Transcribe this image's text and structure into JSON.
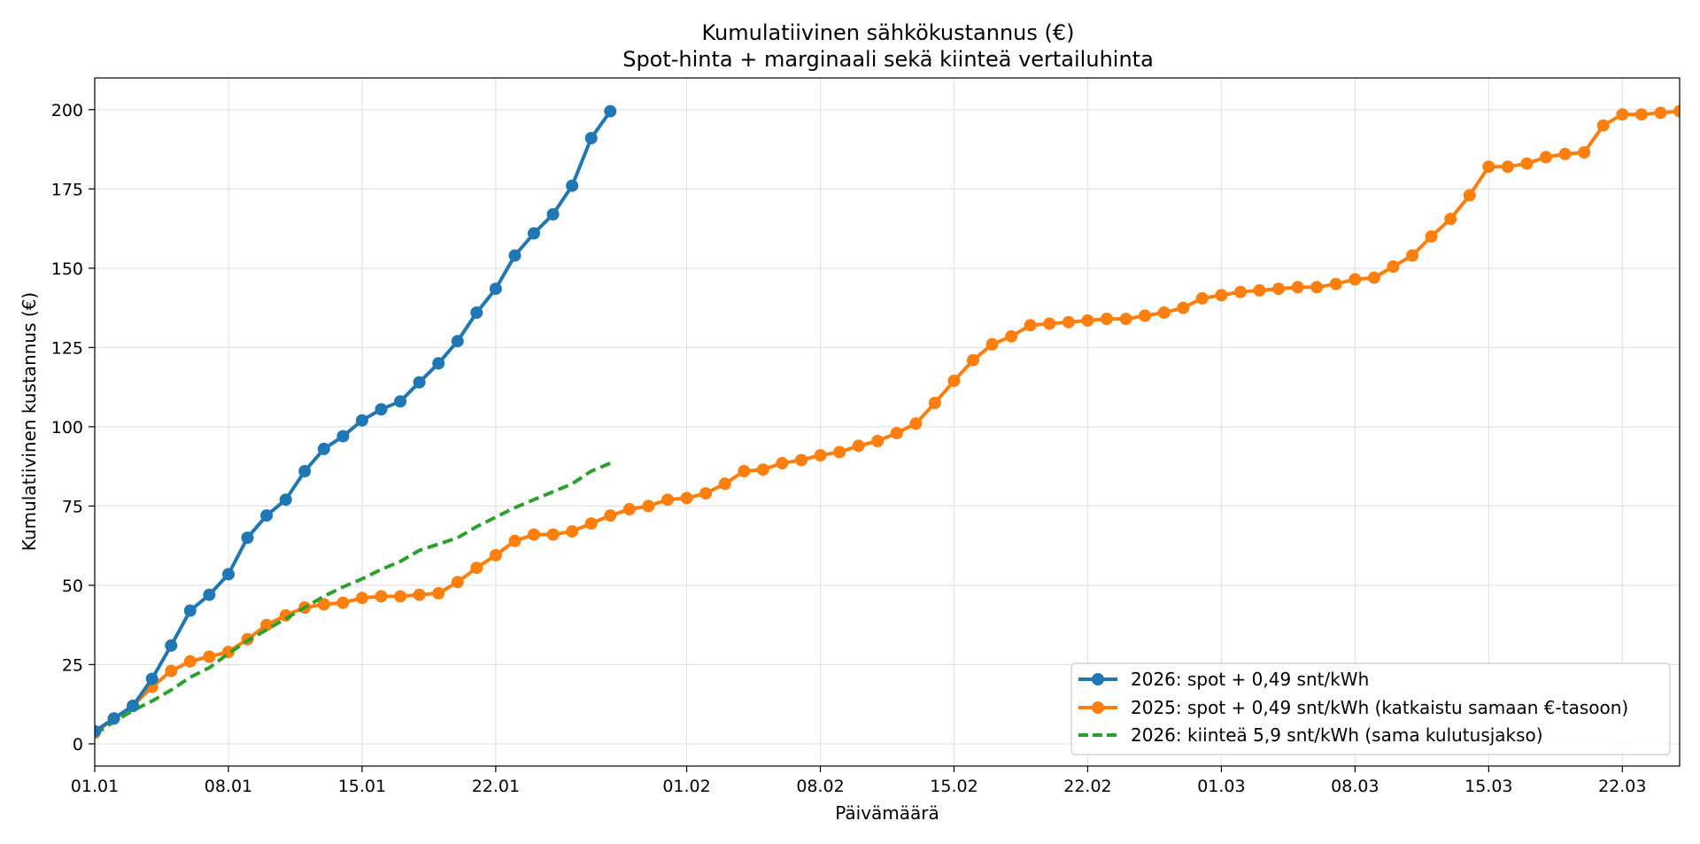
{
  "chart_data": {
    "type": "line",
    "title_line1": "Kumulatiivinen sähkökustannus (€)",
    "title_line2": "Spot-hinta + marginaali sekä kiinteä vertailuhinta",
    "xlabel": "Päivämäärä",
    "ylabel": "Kumulatiivinen kustannus (€)",
    "xlim_days": [
      1,
      84
    ],
    "ylim": [
      -7,
      210
    ],
    "grid": true,
    "legend_position": "lower-right",
    "x_ticks": [
      {
        "day": 1,
        "label": "01.01"
      },
      {
        "day": 8,
        "label": "08.01"
      },
      {
        "day": 15,
        "label": "15.01"
      },
      {
        "day": 22,
        "label": "22.01"
      },
      {
        "day": 32,
        "label": "01.02"
      },
      {
        "day": 39,
        "label": "08.02"
      },
      {
        "day": 46,
        "label": "15.02"
      },
      {
        "day": 53,
        "label": "22.02"
      },
      {
        "day": 60,
        "label": "01.03"
      },
      {
        "day": 67,
        "label": "08.03"
      },
      {
        "day": 74,
        "label": "15.03"
      },
      {
        "day": 81,
        "label": "22.03"
      }
    ],
    "y_ticks": [
      {
        "value": 0,
        "label": "0"
      },
      {
        "value": 25,
        "label": "25"
      },
      {
        "value": 50,
        "label": "50"
      },
      {
        "value": 75,
        "label": "75"
      },
      {
        "value": 100,
        "label": "100"
      },
      {
        "value": 125,
        "label": "125"
      },
      {
        "value": 150,
        "label": "150"
      },
      {
        "value": 175,
        "label": "175"
      },
      {
        "value": 200,
        "label": "200"
      }
    ],
    "series": [
      {
        "name": "2026: spot + 0,49 snt/kWh",
        "color": "#1f77b4",
        "style": "solid-markers",
        "start_day": 1,
        "values": [
          4,
          8,
          12,
          20.5,
          31,
          42,
          47,
          53.5,
          65,
          72,
          77,
          86,
          93,
          97,
          102,
          105.5,
          108,
          114,
          120,
          127,
          136,
          143.5,
          154,
          161,
          167,
          176,
          191,
          199.5
        ]
      },
      {
        "name": "2025: spot + 0,49 snt/kWh (katkaistu samaan €-tasoon)",
        "color": "#ff7f0e",
        "style": "solid-markers",
        "start_day": 1,
        "values": [
          3.5,
          8,
          12,
          18,
          23,
          26,
          27.5,
          29,
          33,
          37.5,
          40.5,
          43,
          44,
          44.5,
          46,
          46.5,
          46.5,
          47,
          47.5,
          51,
          55.5,
          59.5,
          64,
          66,
          66,
          67,
          69.5,
          72,
          74,
          75,
          77,
          77.5,
          79,
          82,
          86,
          86.5,
          88.5,
          89.5,
          91,
          92,
          94,
          95.5,
          98,
          101,
          107.5,
          114.5,
          121,
          126,
          128.5,
          132,
          132.5,
          133,
          133.5,
          134,
          134,
          135,
          136,
          137.5,
          140.5,
          141.5,
          142.5,
          143,
          143.5,
          144,
          144,
          145,
          146.5,
          147,
          150.5,
          154,
          160,
          165.5,
          173,
          182,
          182,
          183,
          185,
          186,
          186.5,
          195,
          198.5,
          198.5,
          199,
          199.5
        ]
      },
      {
        "name": "2026: kiinteä 5,9 snt/kWh (sama kulutusjakso)",
        "color": "#2ca02c",
        "style": "dashed",
        "start_day": 1,
        "values": [
          3,
          7,
          10.5,
          13.5,
          17,
          21,
          24,
          28.5,
          32.5,
          36,
          39.5,
          43,
          46.5,
          49.5,
          52,
          55,
          57.5,
          61,
          63,
          65,
          68.5,
          71.5,
          74.5,
          77,
          79.5,
          82,
          86,
          88.5
        ]
      }
    ]
  }
}
